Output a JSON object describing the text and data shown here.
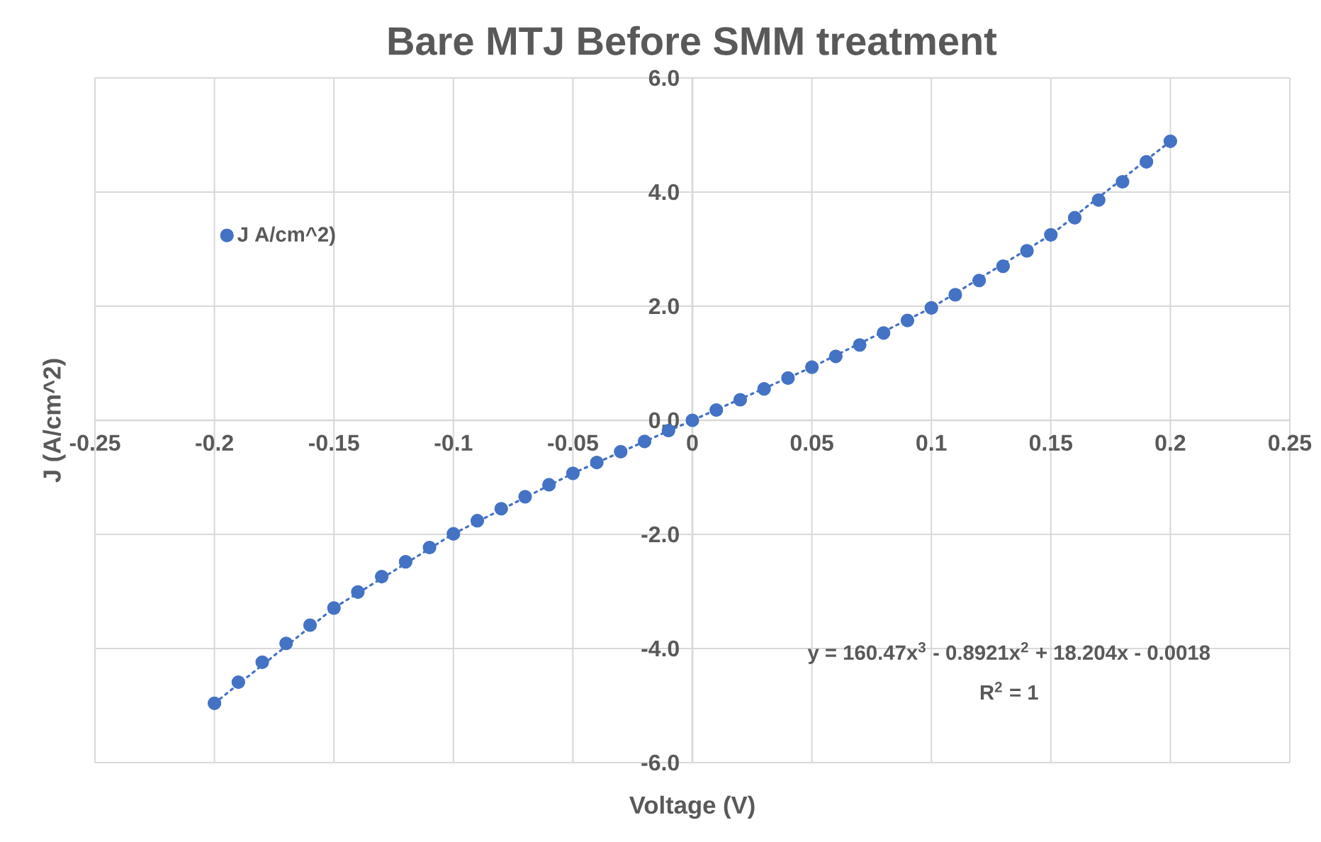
{
  "chart_data": {
    "type": "scatter",
    "title": "Bare MTJ Before SMM treatment",
    "xlabel": "Voltage (V)",
    "ylabel": "J (A/cm^2)",
    "xlim": [
      -0.25,
      0.25
    ],
    "xticks": [
      -0.25,
      -0.2,
      -0.15,
      -0.1,
      -0.05,
      0,
      0.05,
      0.1,
      0.15,
      0.2,
      0.25
    ],
    "ylim": [
      -6,
      6
    ],
    "yticks": [
      {
        "value": -6,
        "label": "-6.0"
      },
      {
        "value": -4,
        "label": "-4.0"
      },
      {
        "value": -2,
        "label": "-2.0"
      },
      {
        "value": 0,
        "label": "0.0"
      },
      {
        "value": 2,
        "label": "2.0"
      },
      {
        "value": 4,
        "label": "4.0"
      },
      {
        "value": 6,
        "label": "6.0"
      }
    ],
    "grid": true,
    "legend": "top left",
    "marker": "circle",
    "annotations": [
      "y = 160.47x$^{3}$ - 0.8921x$^{2}$ + 18.204x - 0.0018",
      "R$^{2}$ = 1"
    ],
    "series": [
      {
        "name": "J A/cm^2)",
        "color": "#4472c4",
        "x": [
          -0.2,
          -0.19,
          -0.18,
          -0.17,
          -0.16,
          -0.15,
          -0.14,
          -0.13,
          -0.12,
          -0.11,
          -0.1,
          -0.09,
          -0.08,
          -0.07,
          -0.06,
          -0.05,
          -0.04,
          -0.03,
          -0.02,
          -0.01,
          0,
          0.01,
          0.02,
          0.03,
          0.04,
          0.05,
          0.06,
          0.07,
          0.08,
          0.09,
          0.1,
          0.11,
          0.12,
          0.13,
          0.14,
          0.15,
          0.16,
          0.17,
          0.18,
          0.19,
          0.2
        ],
        "values": [
          -4.96,
          -4.59,
          -4.24,
          -3.91,
          -3.59,
          -3.29,
          -3.01,
          -2.74,
          -2.48,
          -2.23,
          -1.99,
          -1.76,
          -1.55,
          -1.34,
          -1.13,
          -0.93,
          -0.74,
          -0.55,
          -0.37,
          -0.18,
          0.0,
          0.18,
          0.36,
          0.55,
          0.74,
          0.93,
          1.12,
          1.32,
          1.53,
          1.75,
          1.97,
          2.2,
          2.45,
          2.7,
          2.97,
          3.25,
          3.55,
          3.86,
          4.18,
          4.53,
          4.89
        ]
      },
      {
        "type": "line",
        "color": "#4472c4",
        "line_style": "dotted",
        "marker": "none",
        "x": [
          -0.2,
          -0.15,
          -0.1,
          -0.05,
          0,
          0.05,
          0.1,
          0.15,
          0.2
        ],
        "values": [
          -4.96,
          -3.29,
          -1.99,
          -0.93,
          0.0,
          0.93,
          1.97,
          3.25,
          4.89
        ]
      }
    ]
  }
}
